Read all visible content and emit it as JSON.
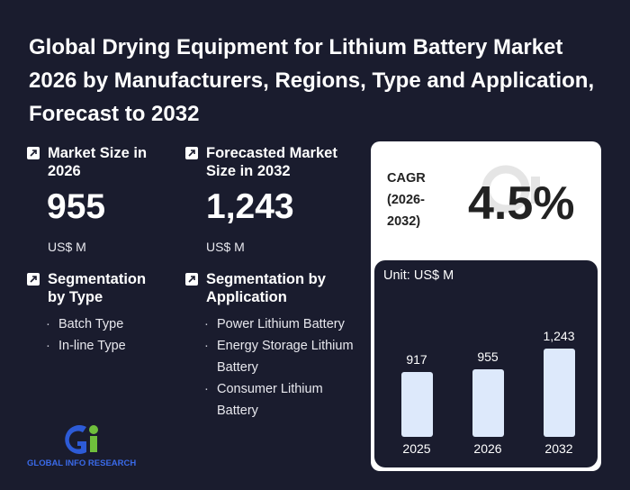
{
  "title": "Global Drying Equipment for Lithium Battery Market 2026 by Manufacturers, Regions, Type and Application, Forecast to 2032",
  "market_size": {
    "label": "Market Size in 2026",
    "value": "955",
    "unit": "US$ M"
  },
  "forecast_size": {
    "label": "Forecasted Market Size in 2032",
    "value": "1,243",
    "unit": "US$ M"
  },
  "segmentation_type": {
    "label": "Segmentation by Type",
    "items": [
      "Batch Type",
      "In-line Type"
    ]
  },
  "segmentation_application": {
    "label": "Segmentation by Application",
    "items": [
      "Power Lithium Battery",
      "Energy Storage Lithium Battery",
      "Consumer Lithium Battery"
    ]
  },
  "cagr": {
    "label": "CAGR (2026-2032)",
    "value": "4.5%"
  },
  "logo": {
    "text": "GLOBAL INFO RESEARCH"
  },
  "chart_data": {
    "type": "bar",
    "unit_label": "Unit: US$ M",
    "categories": [
      "2025",
      "2026",
      "2032"
    ],
    "values": [
      917,
      955,
      1243
    ],
    "value_labels": [
      "917",
      "955",
      "1,243"
    ]
  },
  "colors": {
    "background": "#1a1c2e",
    "bar": "#dde9fb",
    "panel": "#ffffff"
  }
}
